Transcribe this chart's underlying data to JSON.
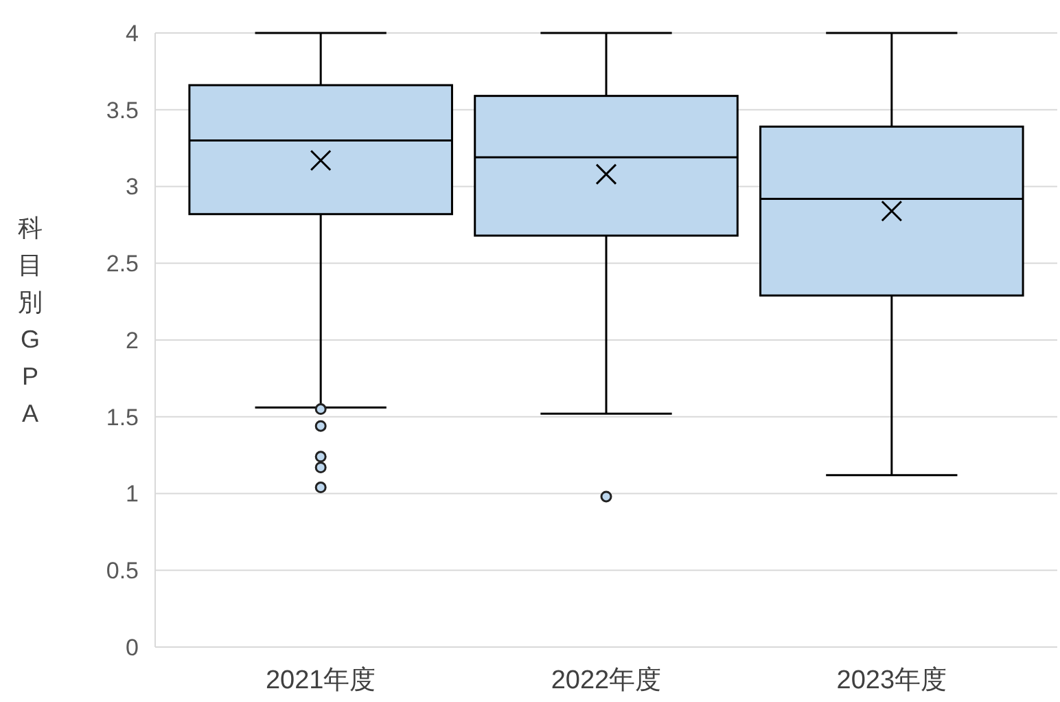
{
  "chart_data": {
    "type": "box",
    "ylabel": "科目別GPA",
    "categories": [
      "2021年度",
      "2022年度",
      "2023年度"
    ],
    "color": "#bdd7ee",
    "ylim": [
      0,
      4
    ],
    "yticks": [
      0,
      0.5,
      1,
      1.5,
      2,
      2.5,
      3,
      3.5,
      4
    ],
    "grid": "y",
    "boxes": [
      {
        "low": 1.56,
        "q1": 2.82,
        "median": 3.3,
        "q3": 3.66,
        "high": 4,
        "mean": 3.17,
        "outliers": [
          1.55,
          1.44,
          1.24,
          1.17,
          1.04
        ]
      },
      {
        "low": 1.52,
        "q1": 2.68,
        "median": 3.19,
        "q3": 3.59,
        "high": 4,
        "mean": 3.08,
        "outliers": [
          0.98
        ]
      },
      {
        "low": 1.12,
        "q1": 2.29,
        "median": 2.92,
        "q3": 3.39,
        "high": 4,
        "mean": 2.84
      }
    ]
  }
}
